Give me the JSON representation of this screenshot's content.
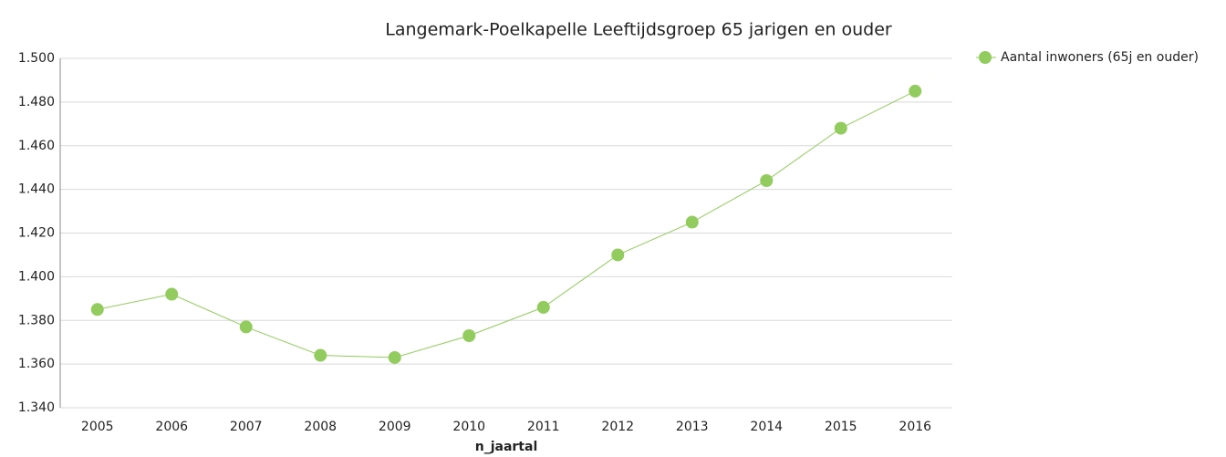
{
  "chart_data": {
    "type": "line",
    "title": "Langemark-Poelkapelle  Leeftijdsgroep 65 jarigen en ouder",
    "x_label": "n_jaartal",
    "categories": [
      "2005",
      "2006",
      "2007",
      "2008",
      "2009",
      "2010",
      "2011",
      "2012",
      "2013",
      "2014",
      "2015",
      "2016"
    ],
    "series": [
      {
        "name": "Aantal inwoners (65j en ouder)",
        "color": "#92cc5e",
        "values": [
          1385,
          1392,
          1377,
          1364,
          1363,
          1373,
          1386,
          1410,
          1425,
          1444,
          1468,
          1485
        ]
      }
    ],
    "ylim": [
      1340,
      1500
    ],
    "yticks": [
      {
        "value": 1340,
        "label": "1.340"
      },
      {
        "value": 1360,
        "label": "1.360"
      },
      {
        "value": 1380,
        "label": "1.380"
      },
      {
        "value": 1400,
        "label": "1.400"
      },
      {
        "value": 1420,
        "label": "1.420"
      },
      {
        "value": 1440,
        "label": "1.440"
      },
      {
        "value": 1460,
        "label": "1.460"
      },
      {
        "value": 1480,
        "label": "1.480"
      },
      {
        "value": 1500,
        "label": "1.500"
      }
    ],
    "grid": true,
    "legend": "top-right"
  }
}
